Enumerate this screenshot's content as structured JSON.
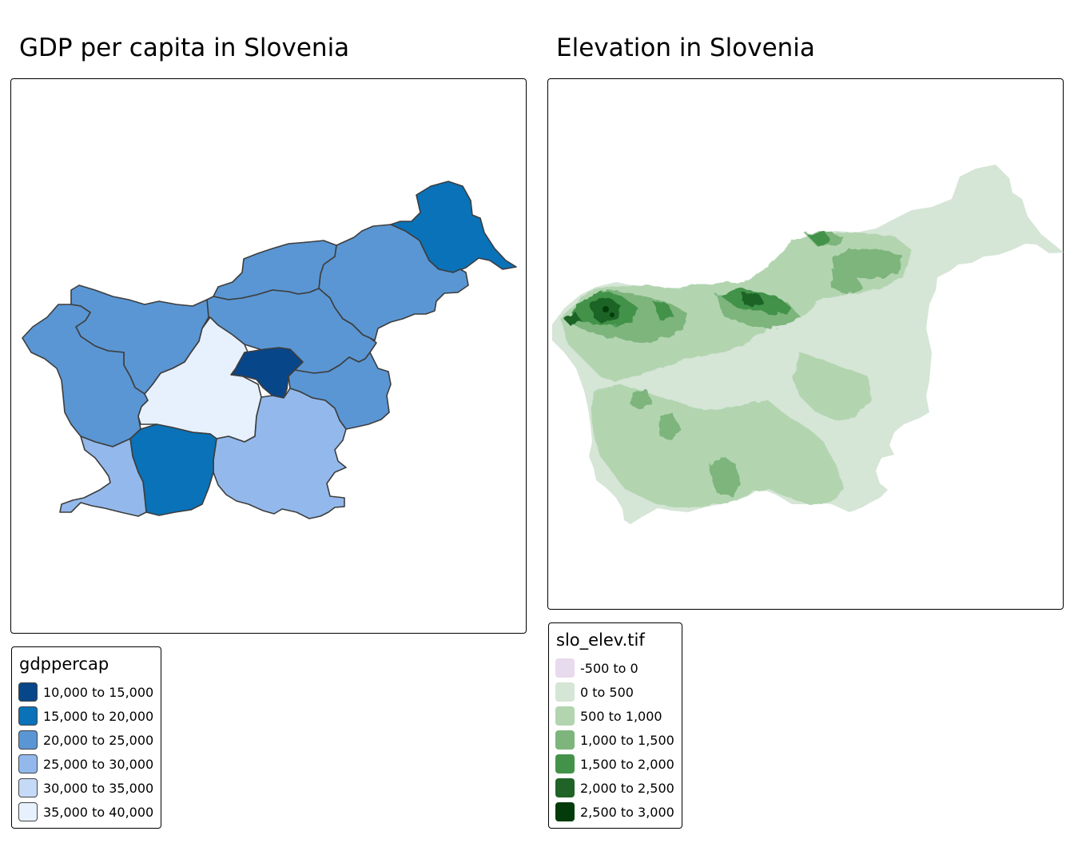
{
  "panels": [
    {
      "title": "GDP per capita in Slovenia",
      "legend": {
        "title": "gdppercap",
        "items": [
          {
            "label": "10,000 to 15,000",
            "color": "#08468a"
          },
          {
            "label": "15,000 to 20,000",
            "color": "#0a72b8"
          },
          {
            "label": "20,000 to 25,000",
            "color": "#5a96d4"
          },
          {
            "label": "25,000 to 30,000",
            "color": "#93b9ec"
          },
          {
            "label": "30,000 to 35,000",
            "color": "#c4daf7"
          },
          {
            "label": "35,000 to 40,000",
            "color": "#e6f1fd"
          }
        ]
      }
    },
    {
      "title": "Elevation in Slovenia",
      "legend": {
        "title": "slo_elev.tif",
        "items": [
          {
            "label": "-500 to 0",
            "color": "#e8dbee"
          },
          {
            "label": "0 to 500",
            "color": "#d5e5d6"
          },
          {
            "label": "500 to 1,000",
            "color": "#b2d5b0"
          },
          {
            "label": "1,000 to 1,500",
            "color": "#7db57c"
          },
          {
            "label": "1,500 to 2,000",
            "color": "#43924a"
          },
          {
            "label": "2,000 to 2,500",
            "color": "#1f6327"
          },
          {
            "label": "2,500 to 3,000",
            "color": "#033b0b"
          }
        ]
      }
    }
  ]
}
